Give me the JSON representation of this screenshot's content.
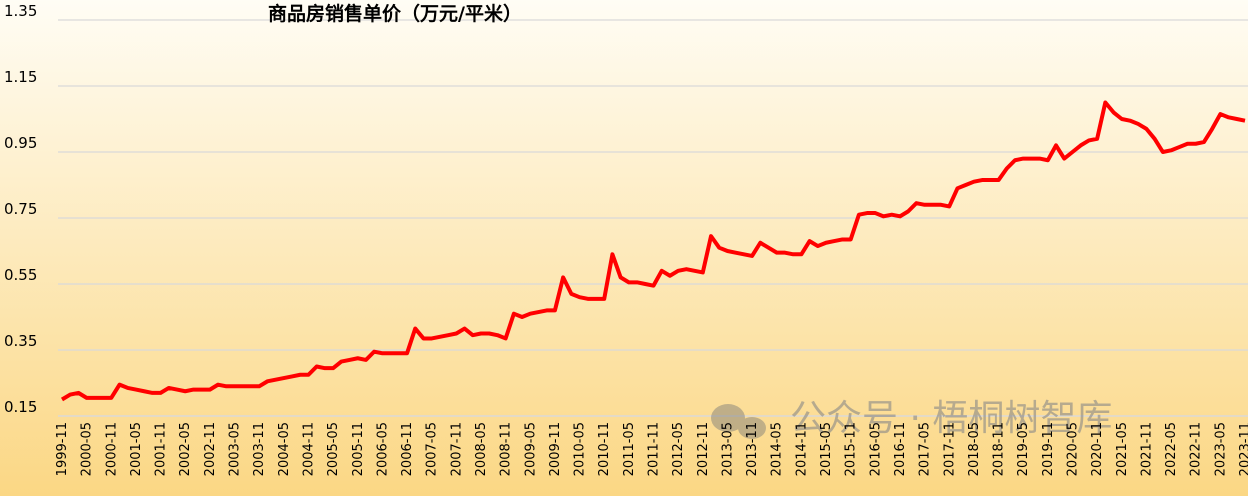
{
  "chart_data": {
    "type": "line",
    "title": "商品房销售单价（万元/平米）",
    "watermark": "公众号 · 梧桐树智库",
    "color": "#ff0000",
    "grid": true,
    "ylim": [
      0.15,
      1.35
    ],
    "yticks": [
      0.15,
      0.35,
      0.55,
      0.75,
      0.95,
      1.15,
      1.35
    ],
    "categories": [
      "1999-11",
      null,
      null,
      "2000-05",
      null,
      null,
      "2000-11",
      null,
      null,
      "2001-05",
      null,
      null,
      "2001-11",
      null,
      null,
      "2002-05",
      null,
      null,
      "2002-11",
      null,
      null,
      "2003-05",
      null,
      null,
      "2003-11",
      null,
      null,
      "2004-05",
      null,
      null,
      "2004-11",
      null,
      null,
      "2005-05",
      null,
      null,
      "2005-11",
      null,
      null,
      "2006-05",
      null,
      null,
      "2006-11",
      null,
      null,
      "2007-05",
      null,
      null,
      "2007-11",
      null,
      null,
      "2008-05",
      null,
      null,
      "2008-11",
      null,
      null,
      "2009-05",
      null,
      null,
      "2009-11",
      null,
      null,
      "2010-05",
      null,
      null,
      "2010-11",
      null,
      null,
      "2011-05",
      null,
      null,
      "2011-11",
      null,
      null,
      "2012-05",
      null,
      null,
      "2012-11",
      null,
      null,
      "2013-05",
      null,
      null,
      "2013-11",
      null,
      null,
      "2014-05",
      null,
      null,
      "2014-11",
      null,
      null,
      "2015-05",
      null,
      null,
      "2015-11",
      null,
      null,
      "2016-05",
      null,
      null,
      "2016-11",
      null,
      null,
      "2017-05",
      null,
      null,
      "2017-11",
      null,
      null,
      "2018-05",
      null,
      null,
      "2018-11",
      null,
      null,
      "2019-05",
      null,
      null,
      "2019-11",
      null,
      null,
      "2020-05",
      null,
      null,
      "2020-11",
      null,
      null,
      "2021-05",
      null,
      null,
      "2021-11",
      null,
      null,
      "2022-05",
      null,
      null,
      "2022-11",
      null,
      null,
      "2023-05",
      null,
      null,
      "2023-11"
    ],
    "values": [
      0.2,
      0.215,
      0.22,
      0.205,
      0.205,
      0.205,
      0.205,
      0.245,
      0.235,
      0.23,
      0.225,
      0.22,
      0.22,
      0.235,
      0.23,
      0.225,
      0.23,
      0.23,
      0.23,
      0.245,
      0.24,
      0.24,
      0.24,
      0.24,
      0.24,
      0.255,
      0.26,
      0.265,
      0.27,
      0.275,
      0.275,
      0.3,
      0.295,
      0.295,
      0.315,
      0.32,
      0.325,
      0.32,
      0.345,
      0.34,
      0.34,
      0.34,
      0.34,
      0.415,
      0.385,
      0.385,
      0.39,
      0.395,
      0.4,
      0.415,
      0.395,
      0.4,
      0.4,
      0.395,
      0.385,
      0.46,
      0.45,
      0.46,
      0.465,
      0.47,
      0.47,
      0.57,
      0.52,
      0.51,
      0.505,
      0.505,
      0.505,
      0.64,
      0.57,
      0.555,
      0.555,
      0.55,
      0.545,
      0.59,
      0.575,
      0.59,
      0.595,
      0.59,
      0.585,
      0.695,
      0.66,
      0.65,
      0.645,
      0.64,
      0.635,
      0.675,
      0.66,
      0.645,
      0.645,
      0.64,
      0.64,
      0.68,
      0.665,
      0.675,
      0.68,
      0.685,
      0.685,
      0.76,
      0.765,
      0.765,
      0.755,
      0.76,
      0.755,
      0.77,
      0.795,
      0.79,
      0.79,
      0.79,
      0.785,
      0.84,
      0.85,
      0.86,
      0.865,
      0.865,
      0.865,
      0.9,
      0.925,
      0.93,
      0.93,
      0.93,
      0.925,
      0.97,
      0.93,
      0.95,
      0.97,
      0.985,
      0.99,
      1.1,
      1.07,
      1.05,
      1.045,
      1.035,
      1.02,
      0.99,
      0.95,
      0.955,
      0.965,
      0.975,
      0.975,
      0.98,
      1.02,
      1.065,
      1.055,
      1.05,
      1.045
    ]
  }
}
